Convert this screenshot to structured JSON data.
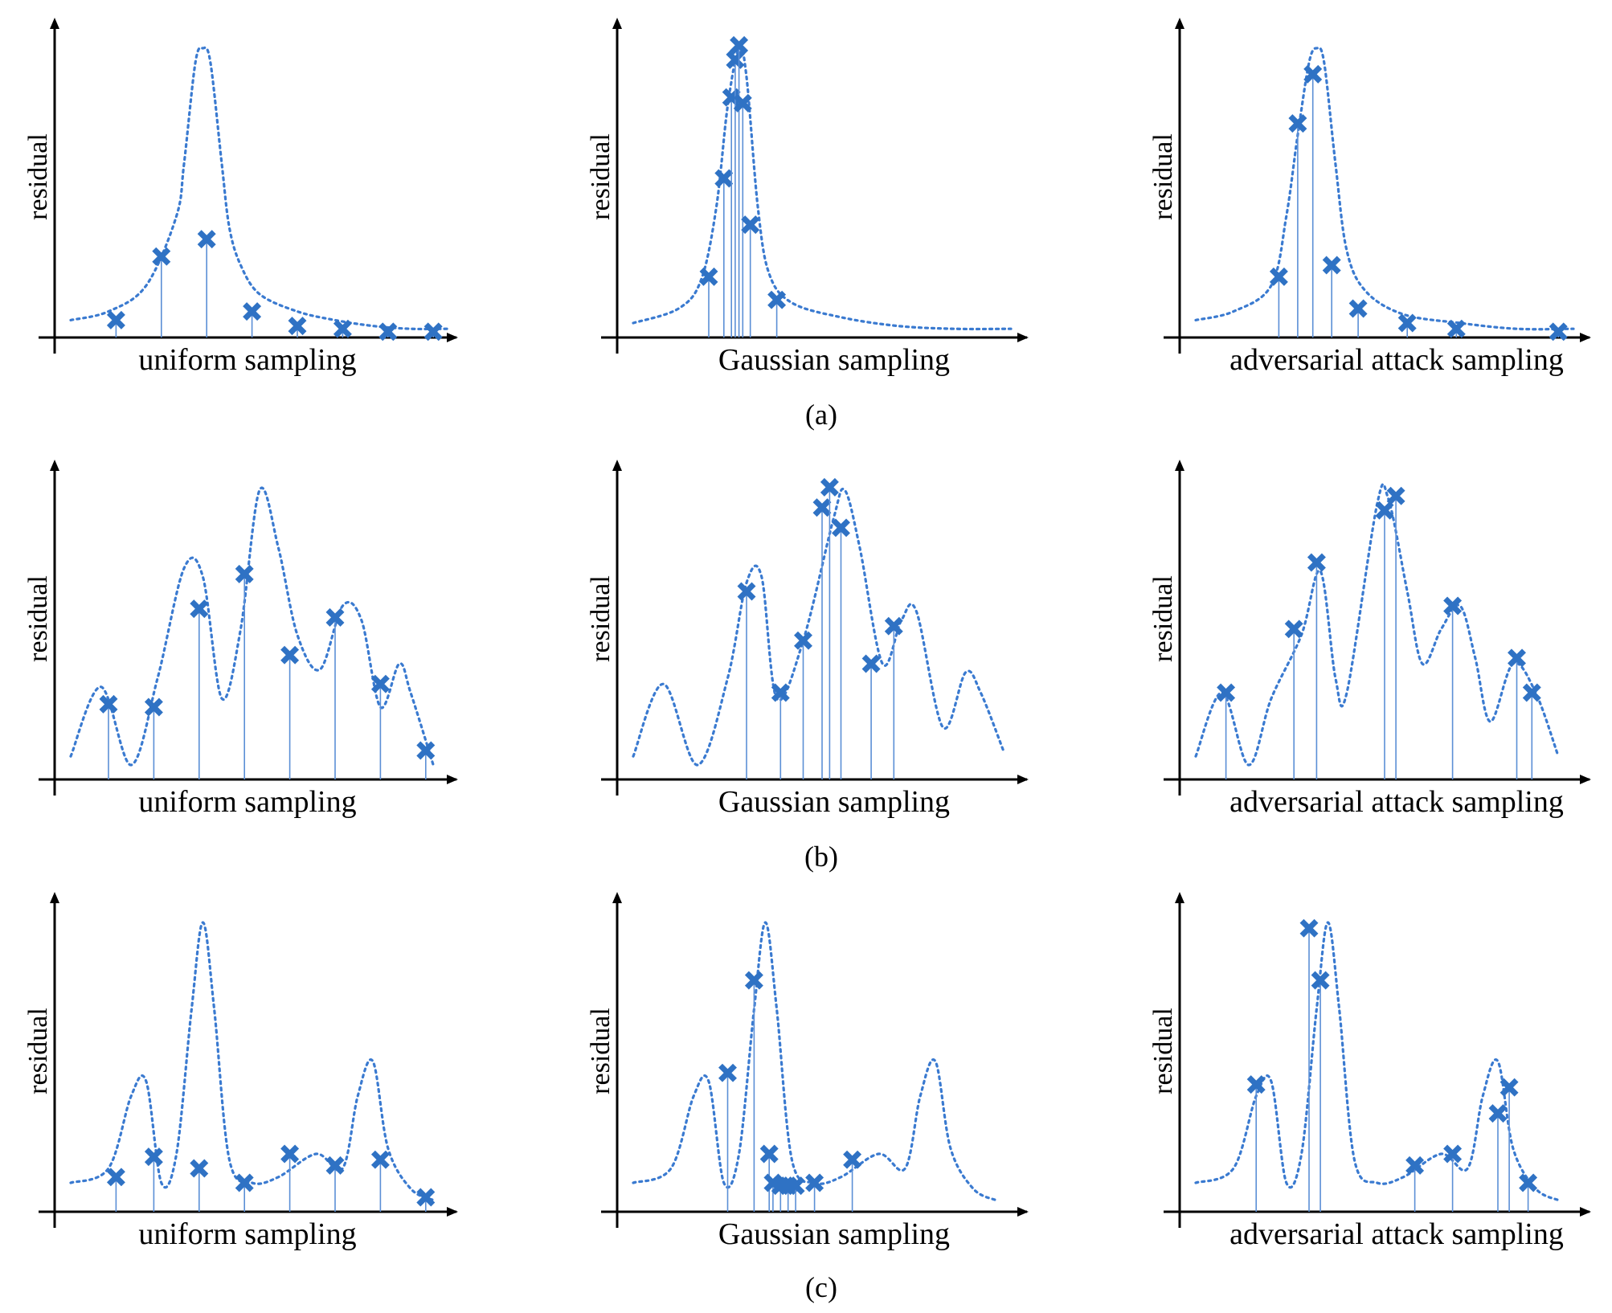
{
  "figure": {
    "rows": [
      {
        "caption": "(a)",
        "panels": [
          {
            "name": "uniform",
            "xlabel": "uniform sampling",
            "ylabel": "residual",
            "curve": [
              [
                0,
                6
              ],
              [
                0.1,
                9
              ],
              [
                0.2,
                18
              ],
              [
                0.28,
                42
              ],
              [
                0.3,
                60
              ],
              [
                0.33,
                95
              ],
              [
                0.35,
                100
              ],
              [
                0.37,
                95
              ],
              [
                0.4,
                60
              ],
              [
                0.42,
                38
              ],
              [
                0.45,
                25
              ],
              [
                0.5,
                15
              ],
              [
                0.6,
                9
              ],
              [
                0.7,
                6
              ],
              [
                0.8,
                4
              ],
              [
                0.9,
                3
              ],
              [
                1,
                3
              ]
            ],
            "samples": [
              [
                0.12,
                6
              ],
              [
                0.24,
                28
              ],
              [
                0.36,
                34
              ],
              [
                0.48,
                9
              ],
              [
                0.6,
                4
              ],
              [
                0.72,
                3
              ],
              [
                0.84,
                2
              ],
              [
                0.96,
                2
              ]
            ]
          },
          {
            "name": "gaussian",
            "xlabel": "Gaussian sampling",
            "ylabel": "residual",
            "curve": [
              [
                0,
                5
              ],
              [
                0.12,
                10
              ],
              [
                0.18,
                20
              ],
              [
                0.22,
                45
              ],
              [
                0.25,
                80
              ],
              [
                0.28,
                100
              ],
              [
                0.3,
                90
              ],
              [
                0.33,
                45
              ],
              [
                0.36,
                22
              ],
              [
                0.42,
                12
              ],
              [
                0.55,
                7
              ],
              [
                0.7,
                4
              ],
              [
                0.85,
                3
              ],
              [
                1,
                3
              ]
            ],
            "samples": [
              [
                0.2,
                21
              ],
              [
                0.24,
                55
              ],
              [
                0.26,
                83
              ],
              [
                0.27,
                96
              ],
              [
                0.28,
                101
              ],
              [
                0.29,
                81
              ],
              [
                0.31,
                39
              ],
              [
                0.38,
                13
              ]
            ]
          },
          {
            "name": "adversarial",
            "xlabel": "adversarial attack sampling",
            "ylabel": "residual",
            "curve": [
              [
                0,
                6
              ],
              [
                0.1,
                9
              ],
              [
                0.2,
                18
              ],
              [
                0.24,
                42
              ],
              [
                0.27,
                70
              ],
              [
                0.3,
                95
              ],
              [
                0.32,
                100
              ],
              [
                0.34,
                95
              ],
              [
                0.37,
                60
              ],
              [
                0.4,
                30
              ],
              [
                0.45,
                16
              ],
              [
                0.55,
                8
              ],
              [
                0.7,
                5
              ],
              [
                0.85,
                3
              ],
              [
                1,
                3
              ]
            ],
            "samples": [
              [
                0.22,
                21
              ],
              [
                0.27,
                74
              ],
              [
                0.31,
                91
              ],
              [
                0.36,
                25
              ],
              [
                0.43,
                10
              ],
              [
                0.56,
                5
              ],
              [
                0.69,
                3
              ],
              [
                0.96,
                2
              ]
            ]
          }
        ]
      },
      {
        "caption": "(b)",
        "panels": [
          {
            "name": "uniform",
            "xlabel": "uniform sampling",
            "ylabel": "residual",
            "curve": [
              [
                0,
                8
              ],
              [
                0.08,
                32
              ],
              [
                0.16,
                5
              ],
              [
                0.23,
                35
              ],
              [
                0.3,
                73
              ],
              [
                0.35,
                70
              ],
              [
                0.4,
                28
              ],
              [
                0.45,
                52
              ],
              [
                0.5,
                100
              ],
              [
                0.55,
                80
              ],
              [
                0.6,
                50
              ],
              [
                0.66,
                38
              ],
              [
                0.72,
                60
              ],
              [
                0.77,
                55
              ],
              [
                0.82,
                25
              ],
              [
                0.87,
                40
              ],
              [
                0.9,
                30
              ],
              [
                0.96,
                5
              ]
            ],
            "samples": [
              [
                0.1,
                26
              ],
              [
                0.22,
                25
              ],
              [
                0.34,
                59
              ],
              [
                0.46,
                71
              ],
              [
                0.58,
                43
              ],
              [
                0.7,
                56
              ],
              [
                0.82,
                33
              ],
              [
                0.94,
                10
              ]
            ]
          },
          {
            "name": "gaussian",
            "xlabel": "Gaussian sampling",
            "ylabel": "residual",
            "curve": [
              [
                0,
                8
              ],
              [
                0.08,
                33
              ],
              [
                0.17,
                5
              ],
              [
                0.25,
                35
              ],
              [
                0.3,
                68
              ],
              [
                0.34,
                70
              ],
              [
                0.38,
                28
              ],
              [
                0.45,
                48
              ],
              [
                0.53,
                90
              ],
              [
                0.56,
                100
              ],
              [
                0.6,
                80
              ],
              [
                0.66,
                40
              ],
              [
                0.71,
                55
              ],
              [
                0.75,
                58
              ],
              [
                0.82,
                18
              ],
              [
                0.88,
                37
              ],
              [
                0.92,
                30
              ],
              [
                0.98,
                10
              ]
            ],
            "samples": [
              [
                0.3,
                65
              ],
              [
                0.39,
                30
              ],
              [
                0.45,
                48
              ],
              [
                0.5,
                94
              ],
              [
                0.52,
                101
              ],
              [
                0.55,
                87
              ],
              [
                0.63,
                40
              ],
              [
                0.69,
                53
              ]
            ]
          },
          {
            "name": "adversarial",
            "xlabel": "adversarial attack sampling",
            "ylabel": "residual",
            "curve": [
              [
                0,
                8
              ],
              [
                0.07,
                30
              ],
              [
                0.14,
                5
              ],
              [
                0.2,
                28
              ],
              [
                0.28,
                50
              ],
              [
                0.33,
                72
              ],
              [
                0.37,
                35
              ],
              [
                0.4,
                30
              ],
              [
                0.48,
                95
              ],
              [
                0.51,
                97
              ],
              [
                0.56,
                65
              ],
              [
                0.6,
                40
              ],
              [
                0.65,
                52
              ],
              [
                0.7,
                60
              ],
              [
                0.74,
                42
              ],
              [
                0.78,
                20
              ],
              [
                0.84,
                40
              ],
              [
                0.9,
                30
              ],
              [
                0.96,
                8
              ]
            ],
            "samples": [
              [
                0.08,
                30
              ],
              [
                0.26,
                52
              ],
              [
                0.32,
                75
              ],
              [
                0.5,
                93
              ],
              [
                0.53,
                98
              ],
              [
                0.68,
                60
              ],
              [
                0.85,
                42
              ],
              [
                0.89,
                30
              ]
            ]
          }
        ]
      },
      {
        "caption": "(c)",
        "panels": [
          {
            "name": "uniform",
            "xlabel": "uniform sampling",
            "ylabel": "residual",
            "curve": [
              [
                0,
                10
              ],
              [
                0.1,
                15
              ],
              [
                0.16,
                40
              ],
              [
                0.2,
                45
              ],
              [
                0.24,
                10
              ],
              [
                0.28,
                20
              ],
              [
                0.32,
                70
              ],
              [
                0.35,
                100
              ],
              [
                0.38,
                70
              ],
              [
                0.42,
                18
              ],
              [
                0.48,
                10
              ],
              [
                0.55,
                12
              ],
              [
                0.65,
                20
              ],
              [
                0.72,
                15
              ],
              [
                0.76,
                40
              ],
              [
                0.8,
                52
              ],
              [
                0.84,
                22
              ],
              [
                0.9,
                8
              ],
              [
                0.96,
                4
              ]
            ],
            "samples": [
              [
                0.12,
                12
              ],
              [
                0.22,
                19
              ],
              [
                0.34,
                15
              ],
              [
                0.46,
                10
              ],
              [
                0.58,
                20
              ],
              [
                0.7,
                16
              ],
              [
                0.82,
                18
              ],
              [
                0.94,
                5
              ]
            ]
          },
          {
            "name": "gaussian",
            "xlabel": "Gaussian sampling",
            "ylabel": "residual",
            "curve": [
              [
                0,
                10
              ],
              [
                0.1,
                15
              ],
              [
                0.16,
                40
              ],
              [
                0.2,
                45
              ],
              [
                0.24,
                10
              ],
              [
                0.28,
                20
              ],
              [
                0.32,
                70
              ],
              [
                0.35,
                100
              ],
              [
                0.38,
                70
              ],
              [
                0.42,
                18
              ],
              [
                0.48,
                10
              ],
              [
                0.55,
                12
              ],
              [
                0.65,
                20
              ],
              [
                0.72,
                15
              ],
              [
                0.76,
                40
              ],
              [
                0.8,
                52
              ],
              [
                0.84,
                22
              ],
              [
                0.9,
                8
              ],
              [
                0.96,
                4
              ]
            ],
            "samples": [
              [
                0.25,
                48
              ],
              [
                0.32,
                80
              ],
              [
                0.36,
                20
              ],
              [
                0.37,
                10
              ],
              [
                0.39,
                9
              ],
              [
                0.41,
                9
              ],
              [
                0.43,
                9
              ],
              [
                0.48,
                10
              ],
              [
                0.58,
                18
              ]
            ]
          },
          {
            "name": "adversarial",
            "xlabel": "adversarial attack sampling",
            "ylabel": "residual",
            "curve": [
              [
                0,
                10
              ],
              [
                0.1,
                15
              ],
              [
                0.16,
                40
              ],
              [
                0.2,
                45
              ],
              [
                0.24,
                10
              ],
              [
                0.28,
                20
              ],
              [
                0.32,
                70
              ],
              [
                0.35,
                100
              ],
              [
                0.38,
                70
              ],
              [
                0.42,
                18
              ],
              [
                0.48,
                10
              ],
              [
                0.55,
                12
              ],
              [
                0.65,
                20
              ],
              [
                0.72,
                15
              ],
              [
                0.76,
                40
              ],
              [
                0.8,
                52
              ],
              [
                0.84,
                22
              ],
              [
                0.9,
                8
              ],
              [
                0.96,
                4
              ]
            ],
            "samples": [
              [
                0.16,
                44
              ],
              [
                0.3,
                98
              ],
              [
                0.33,
                80
              ],
              [
                0.58,
                16
              ],
              [
                0.68,
                20
              ],
              [
                0.8,
                34
              ],
              [
                0.83,
                43
              ],
              [
                0.88,
                10
              ]
            ]
          }
        ]
      }
    ]
  }
}
